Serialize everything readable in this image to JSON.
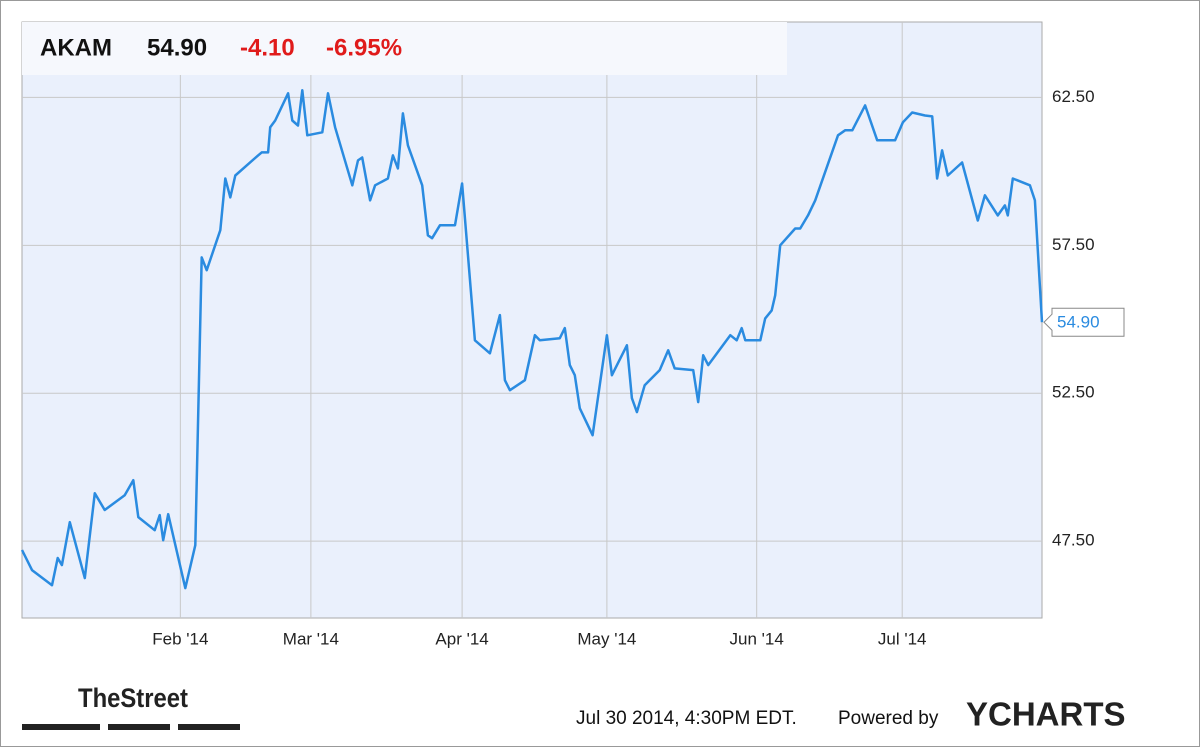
{
  "chart_data": {
    "type": "line",
    "ticker": "AKAM",
    "price": "54.90",
    "change": "-4.10",
    "change_pct": "-6.95%",
    "x": [
      0,
      1.4,
      4.2,
      5.0,
      5.6,
      6.7,
      8.8,
      10.2,
      11.6,
      14.4,
      15.6,
      16.3,
      18.6,
      19.3,
      19.8,
      20.5,
      22.9,
      24.3,
      25.2,
      25.9,
      27.8,
      28.5,
      29.2,
      29.9,
      33.1,
      33.6,
      34.5,
      34.8,
      35.5,
      37.3,
      37.9,
      38.7,
      39.3,
      40.0,
      42.1,
      42.9,
      43.9,
      46.3,
      47.1,
      47.7,
      48.8,
      49.5,
      51.3,
      52.0,
      52.7,
      53.4,
      54.1,
      56.1,
      56.9,
      57.5,
      58.6,
      60.7,
      61.7,
      63.5,
      65.6,
      67.0,
      67.7,
      68.4,
      70.5,
      71.9,
      72.6,
      75.4,
      76.1,
      76.8,
      77.5,
      78.2,
      80.0,
      80.8,
      82.0,
      82.7,
      84.8,
      85.5,
      86.2,
      87.3,
      89.4,
      90.6,
      91.5,
      94.1,
      94.8,
      95.5,
      96.2,
      99.3,
      100.2,
      100.9,
      101.4,
      103.5,
      104.2,
      105.1,
      105.6,
      106.3,
      108.4,
      109.1,
      110.2,
      111.2,
      114.4,
      115.4,
      116.4,
      118.2,
      119.9,
      122.4,
      123.5,
      124.8,
      126.6,
      127.6,
      128.3,
      129.0,
      129.8,
      131.8,
      134.0,
      135.0,
      136.8,
      137.8,
      138.2,
      138.9,
      141.3,
      142.0,
      143.0
    ],
    "series": [
      {
        "name": "AKAM",
        "color": "#2a8be0",
        "values": [
          47.2,
          46.52,
          46.01,
          46.93,
          46.69,
          48.14,
          46.25,
          49.12,
          48.55,
          49.05,
          49.56,
          48.31,
          47.87,
          48.38,
          47.53,
          48.41,
          45.91,
          47.36,
          57.09,
          56.66,
          58.01,
          59.76,
          59.12,
          59.86,
          60.54,
          60.64,
          60.64,
          61.49,
          61.72,
          62.64,
          61.72,
          61.55,
          62.74,
          61.22,
          61.32,
          62.64,
          61.49,
          59.53,
          60.37,
          60.47,
          59.02,
          59.53,
          59.76,
          60.54,
          60.1,
          61.96,
          60.88,
          59.53,
          57.84,
          57.74,
          58.18,
          58.18,
          59.59,
          54.29,
          53.85,
          55.14,
          52.94,
          52.6,
          52.94,
          54.46,
          54.29,
          54.36,
          54.7,
          53.45,
          53.11,
          51.99,
          51.08,
          52.43,
          54.46,
          53.11,
          54.12,
          52.33,
          51.86,
          52.77,
          53.28,
          53.95,
          53.34,
          53.28,
          52.2,
          53.78,
          53.45,
          54.46,
          54.29,
          54.7,
          54.29,
          54.29,
          55.03,
          55.3,
          55.81,
          57.5,
          58.07,
          58.07,
          58.51,
          59.02,
          61.22,
          61.39,
          61.39,
          62.23,
          61.05,
          61.05,
          61.66,
          61.99,
          61.89,
          61.86,
          59.76,
          60.71,
          59.86,
          60.3,
          58.34,
          59.19,
          58.51,
          58.85,
          58.51,
          59.76,
          59.53,
          59.02,
          54.9
        ]
      }
    ],
    "xlim": [
      0,
      143
    ],
    "xticks": [
      {
        "value": 22.2,
        "label": "Feb '14"
      },
      {
        "value": 40.5,
        "label": "Mar '14"
      },
      {
        "value": 61.7,
        "label": "Apr '14"
      },
      {
        "value": 82.0,
        "label": "May '14"
      },
      {
        "value": 103.0,
        "label": "Jun '14"
      },
      {
        "value": 123.4,
        "label": "Jul '14"
      }
    ],
    "ylim": [
      44.9,
      65.05
    ],
    "yticks": [
      {
        "value": 47.5,
        "label": "47.50"
      },
      {
        "value": 52.5,
        "label": "52.50"
      },
      {
        "value": 57.5,
        "label": "57.50"
      },
      {
        "value": 62.5,
        "label": "62.50"
      }
    ],
    "grid": true
  },
  "footer": {
    "timestamp": "Jul 30 2014, 4:30PM EDT.",
    "powered": "Powered by",
    "brand": "YCHARTS",
    "source": "TheStreet"
  }
}
